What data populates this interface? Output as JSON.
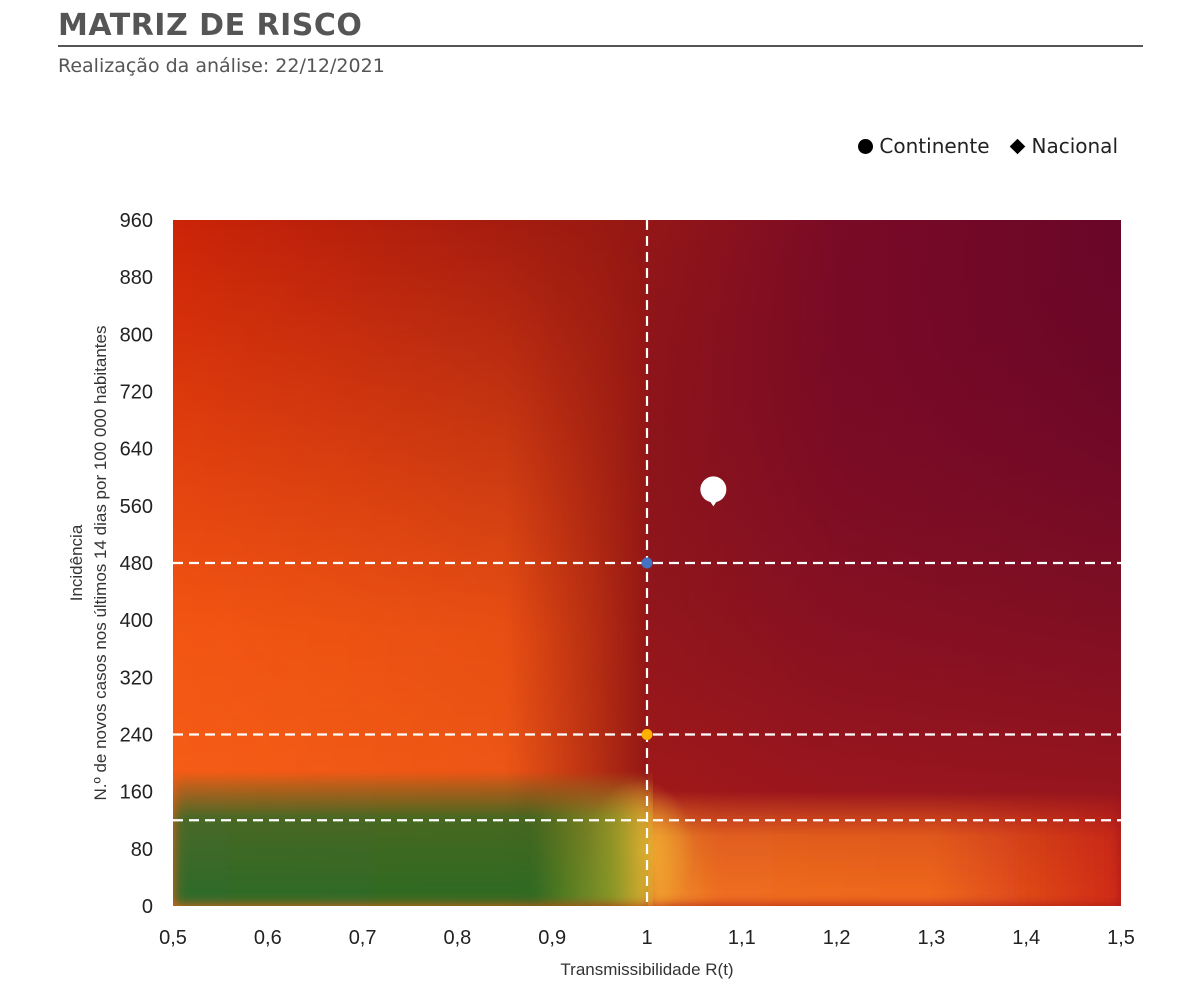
{
  "header": {
    "title": "MATRIZ DE RISCO",
    "subtitle": "Realização da análise: 22/12/2021"
  },
  "legend": {
    "items": [
      {
        "label": "Continente",
        "marker": "circle"
      },
      {
        "label": "Nacional",
        "marker": "diamond"
      }
    ]
  },
  "chart_data": {
    "type": "scatter",
    "title": "MATRIZ DE RISCO",
    "xlabel": "Transmissibilidade R(t)",
    "ylabel_lines": [
      "Incidência",
      "N.º de novos casos nos últimos 14 dias por 100 000 habitantes"
    ],
    "xlim": [
      0.5,
      1.5
    ],
    "ylim": [
      0,
      960
    ],
    "x_ticks": [
      0.5,
      0.6,
      0.7,
      0.8,
      0.9,
      1,
      1.1,
      1.2,
      1.3,
      1.4,
      1.5
    ],
    "x_tick_labels": [
      "0,5",
      "0,6",
      "0,7",
      "0,8",
      "0,9",
      "1",
      "1,1",
      "1,2",
      "1,3",
      "1,4",
      "1,5"
    ],
    "y_ticks": [
      0,
      80,
      160,
      240,
      320,
      400,
      480,
      560,
      640,
      720,
      800,
      880,
      960
    ],
    "y_tick_labels": [
      "0",
      "80",
      "160",
      "240",
      "320",
      "400",
      "480",
      "560",
      "640",
      "720",
      "800",
      "880",
      "960"
    ],
    "reference_lines": {
      "x": [
        1
      ],
      "y": [
        120,
        240,
        480
      ]
    },
    "reference_points": [
      {
        "x": 1,
        "y": 480,
        "color": "#4472c4"
      },
      {
        "x": 1,
        "y": 240,
        "color": "#ffb000"
      }
    ],
    "series": [
      {
        "name": "Continente",
        "marker": "circle",
        "color": "#ffffff",
        "points": [
          {
            "x": 1.07,
            "y": 583
          }
        ]
      }
    ],
    "background_colors": {
      "green": "#2a6a2a",
      "yellow": "#f0b030",
      "orange": "#f65b14",
      "red": "#c82010",
      "dark": "#6e0828"
    },
    "grid": false,
    "legend_position": "top-right"
  }
}
